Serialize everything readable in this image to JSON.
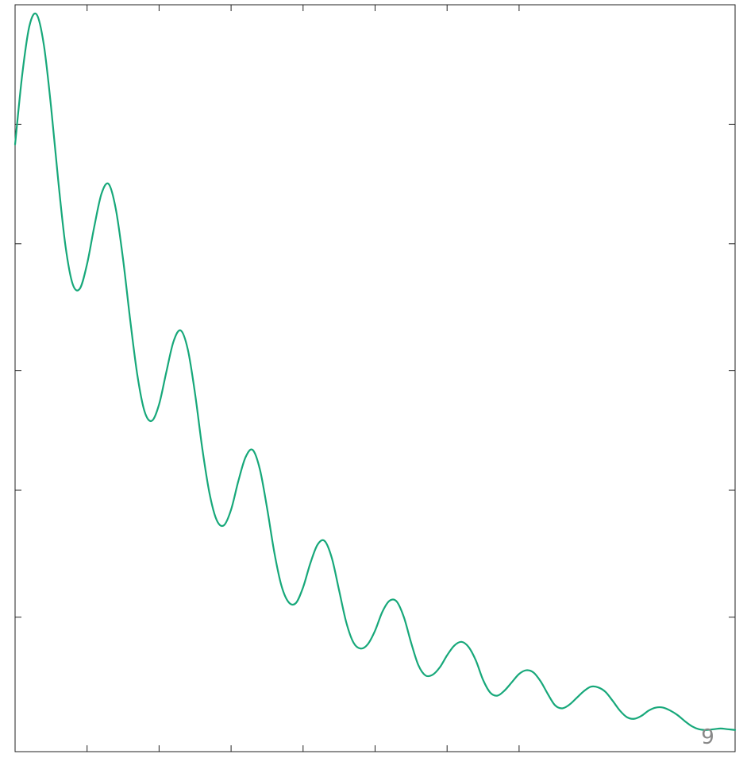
{
  "chart_data": {
    "type": "line",
    "title": "",
    "xlabel": "",
    "ylabel": "",
    "xlim": [
      0,
      10
    ],
    "ylim": [
      0,
      1
    ],
    "x_ticks": [
      1,
      2,
      3,
      4,
      5,
      6,
      7
    ],
    "y_ticks": [
      0.18,
      0.35,
      0.51,
      0.68,
      0.84
    ],
    "grid": false,
    "legend": "none",
    "annotations": [
      {
        "text": "9",
        "x": 9.62,
        "y": 0.0
      }
    ],
    "series": [
      {
        "color": "#17a87a",
        "x": [
          0.0,
          0.1,
          0.2,
          0.3,
          0.4,
          0.5,
          0.6,
          0.7,
          0.8,
          0.9,
          1.0,
          1.1,
          1.2,
          1.3,
          1.4,
          1.5,
          1.6,
          1.7,
          1.8,
          1.9,
          2.0,
          2.1,
          2.2,
          2.3,
          2.4,
          2.5,
          2.6,
          2.7,
          2.8,
          2.9,
          3.0,
          3.1,
          3.2,
          3.3,
          3.4,
          3.5,
          3.6,
          3.7,
          3.8,
          3.9,
          4.0,
          4.1,
          4.2,
          4.3,
          4.4,
          4.5,
          4.6,
          4.7,
          4.8,
          4.9,
          5.0,
          5.1,
          5.2,
          5.3,
          5.4,
          5.5,
          5.6,
          5.7,
          5.8,
          5.9,
          6.0,
          6.1,
          6.2,
          6.3,
          6.4,
          6.5,
          6.6,
          6.7,
          6.8,
          6.9,
          7.0,
          7.1,
          7.2,
          7.3,
          7.4,
          7.5,
          7.6,
          7.7,
          7.8,
          7.9,
          8.0,
          8.1,
          8.2,
          8.3,
          8.4,
          8.5,
          8.6,
          8.7,
          8.8,
          8.9,
          9.0,
          9.1,
          9.2,
          9.3,
          9.4,
          9.5,
          9.6,
          9.7,
          9.8,
          9.9,
          10.0
        ],
        "y": [
          0.813,
          0.907,
          0.972,
          0.987,
          0.946,
          0.863,
          0.764,
          0.677,
          0.626,
          0.62,
          0.653,
          0.703,
          0.747,
          0.76,
          0.726,
          0.659,
          0.577,
          0.503,
          0.455,
          0.443,
          0.465,
          0.508,
          0.549,
          0.564,
          0.538,
          0.479,
          0.406,
          0.346,
          0.31,
          0.303,
          0.324,
          0.362,
          0.394,
          0.404,
          0.378,
          0.326,
          0.267,
          0.222,
          0.2,
          0.199,
          0.22,
          0.252,
          0.277,
          0.282,
          0.259,
          0.216,
          0.173,
          0.146,
          0.138,
          0.144,
          0.162,
          0.187,
          0.202,
          0.201,
          0.18,
          0.146,
          0.116,
          0.102,
          0.103,
          0.113,
          0.129,
          0.142,
          0.147,
          0.14,
          0.122,
          0.096,
          0.079,
          0.075,
          0.082,
          0.093,
          0.104,
          0.109,
          0.106,
          0.094,
          0.077,
          0.062,
          0.058,
          0.063,
          0.072,
          0.081,
          0.087,
          0.086,
          0.08,
          0.068,
          0.055,
          0.046,
          0.044,
          0.048,
          0.055,
          0.059,
          0.059,
          0.055,
          0.049,
          0.041,
          0.034,
          0.03,
          0.029,
          0.03,
          0.031,
          0.03,
          0.029
        ]
      }
    ]
  }
}
